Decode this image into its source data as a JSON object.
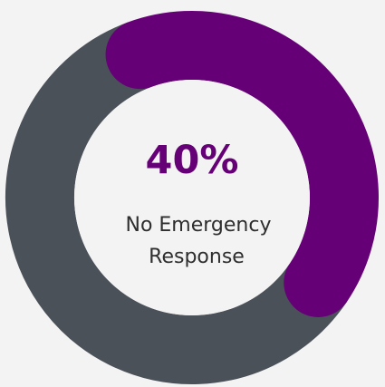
{
  "chart_data": {
    "type": "pie",
    "center_value": "40%",
    "center_label_lines": [
      "No Emergency",
      "Response"
    ],
    "slices": [
      {
        "value": 40,
        "color": "#660077"
      },
      {
        "value": 60,
        "color": "#4b5159"
      }
    ]
  },
  "colors": {
    "background": "#f3f3f3",
    "center_fill": "#f3f3f3",
    "center_value_text": "#660077",
    "center_label_text": "#2e2e2e"
  }
}
